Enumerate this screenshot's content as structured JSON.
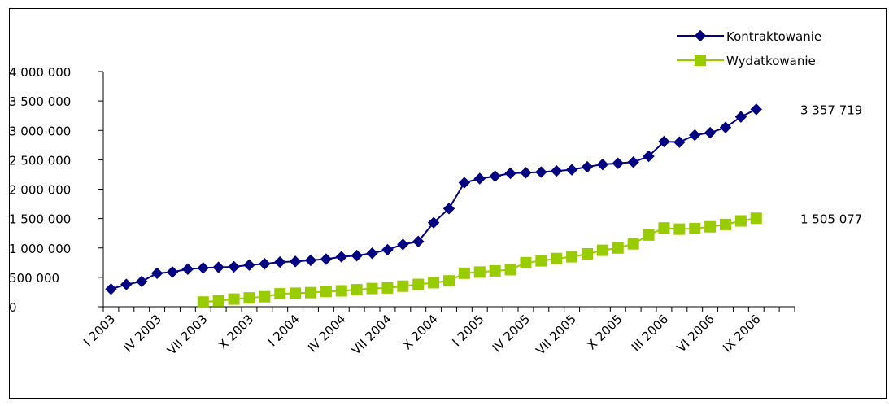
{
  "chart_data": {
    "type": "line",
    "title": "",
    "xlabel": "",
    "ylabel": "",
    "ylim": [
      0,
      4000000
    ],
    "yticks": [
      0,
      500000,
      1000000,
      1500000,
      2000000,
      2500000,
      3000000,
      3500000,
      4000000
    ],
    "ytick_labels": [
      "0",
      "500 000",
      "1 000 000",
      "1 500 000",
      "2 000 000",
      "2 500 000",
      "3 000 000",
      "3 500 000",
      "4 000 000"
    ],
    "x_count": 45,
    "xtick_labels": [
      {
        "index": 0,
        "label": "I 2003"
      },
      {
        "index": 3,
        "label": "IV 2003"
      },
      {
        "index": 6,
        "label": "VII 2003"
      },
      {
        "index": 9,
        "label": "X 2003"
      },
      {
        "index": 12,
        "label": "I 2004"
      },
      {
        "index": 15,
        "label": "IV 2004"
      },
      {
        "index": 18,
        "label": "VII 2004"
      },
      {
        "index": 21,
        "label": "X 2004"
      },
      {
        "index": 24,
        "label": "I 2005"
      },
      {
        "index": 27,
        "label": "IV 2005"
      },
      {
        "index": 30,
        "label": "VII 2005"
      },
      {
        "index": 33,
        "label": "X 2005"
      },
      {
        "index": 36,
        "label": "III 2006"
      },
      {
        "index": 39,
        "label": "VI 2006"
      },
      {
        "index": 42,
        "label": "IX 2006"
      }
    ],
    "grid": false,
    "legend_position": "top-right",
    "series": [
      {
        "name": "Kontraktowanie",
        "color": "#000080",
        "marker": "diamond",
        "start_index": 0,
        "end_label": "3 357 719",
        "values": [
          300000,
          380000,
          430000,
          570000,
          590000,
          640000,
          660000,
          670000,
          680000,
          710000,
          730000,
          760000,
          770000,
          790000,
          810000,
          850000,
          870000,
          910000,
          970000,
          1060000,
          1110000,
          1430000,
          1670000,
          2110000,
          2180000,
          2220000,
          2270000,
          2280000,
          2290000,
          2310000,
          2330000,
          2380000,
          2420000,
          2440000,
          2460000,
          2560000,
          2810000,
          2800000,
          2920000,
          2960000,
          3050000,
          3230000,
          3357719
        ]
      },
      {
        "name": "Wydatkowanie",
        "color": "#99CC00",
        "marker": "square",
        "start_index": 6,
        "end_label": "1 505 077",
        "values": [
          80000,
          100000,
          130000,
          150000,
          170000,
          220000,
          230000,
          240000,
          260000,
          270000,
          290000,
          310000,
          320000,
          350000,
          380000,
          410000,
          440000,
          570000,
          590000,
          610000,
          630000,
          750000,
          780000,
          820000,
          850000,
          900000,
          960000,
          1000000,
          1070000,
          1220000,
          1340000,
          1320000,
          1330000,
          1360000,
          1400000,
          1460000,
          1505077
        ]
      }
    ]
  }
}
